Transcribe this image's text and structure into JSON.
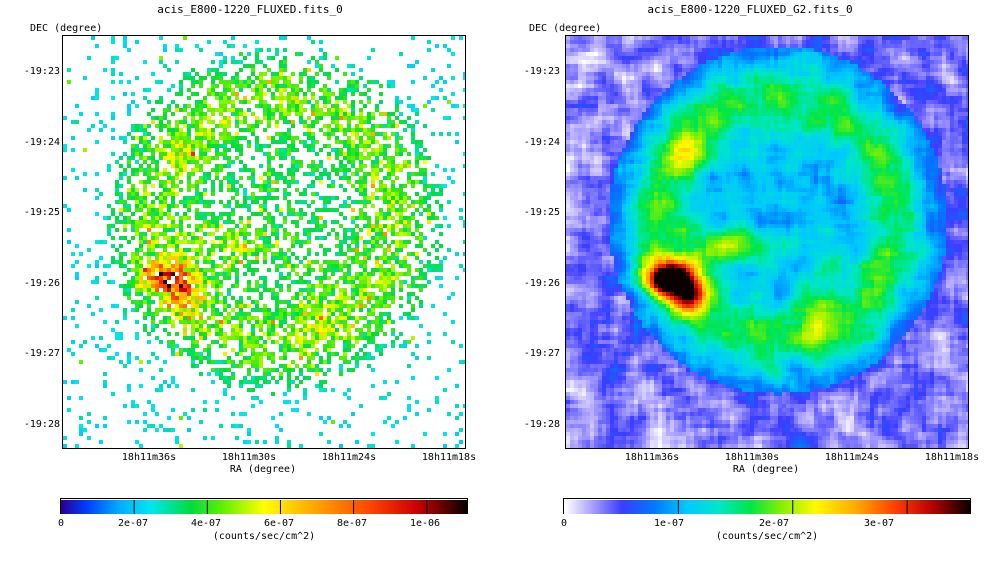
{
  "chart_data": [
    {
      "type": "heatmap",
      "title": "acis_E800-1220_FLUXED.fits_0",
      "xlabel": "RA (degree)",
      "ylabel": "DEC (degree)",
      "x_ticks": [
        "18h11m36s",
        "18h11m30s",
        "18h11m24s",
        "18h11m18s"
      ],
      "y_ticks": [
        "-19:23",
        "-19:24",
        "-19:25",
        "-19:26",
        "-19:27",
        "-19:28"
      ],
      "colorbar": {
        "ticks": [
          "0",
          "2e-07",
          "4e-07",
          "6e-07",
          "8e-07",
          "1e-06"
        ],
        "range": [
          0,
          1.12e-06
        ],
        "unit_label": "(counts/sec/cm^2)"
      },
      "colormap": "rainbow (dark blue → cyan → green → yellow → orange → red → black)",
      "style": "sparse pixel counts"
    },
    {
      "type": "heatmap",
      "title": "acis_E800-1220_FLUXED_G2.fits_0",
      "xlabel": "RA (degree)",
      "ylabel": "DEC (degree)",
      "x_ticks": [
        "18h11m36s",
        "18h11m30s",
        "18h11m24s",
        "18h11m18s"
      ],
      "y_ticks": [
        "-19:23",
        "-19:24",
        "-19:25",
        "-19:26",
        "-19:27",
        "-19:28"
      ],
      "colorbar": {
        "ticks": [
          "0",
          "1e-07",
          "2e-07",
          "3e-07"
        ],
        "range": [
          0,
          3.85e-07
        ],
        "unit_label": "(counts/sec/cm^2)"
      },
      "colormap": "rainbow (white → blue → cyan → green → yellow → orange → red → black)",
      "style": "gaussian-smoothed image"
    }
  ]
}
